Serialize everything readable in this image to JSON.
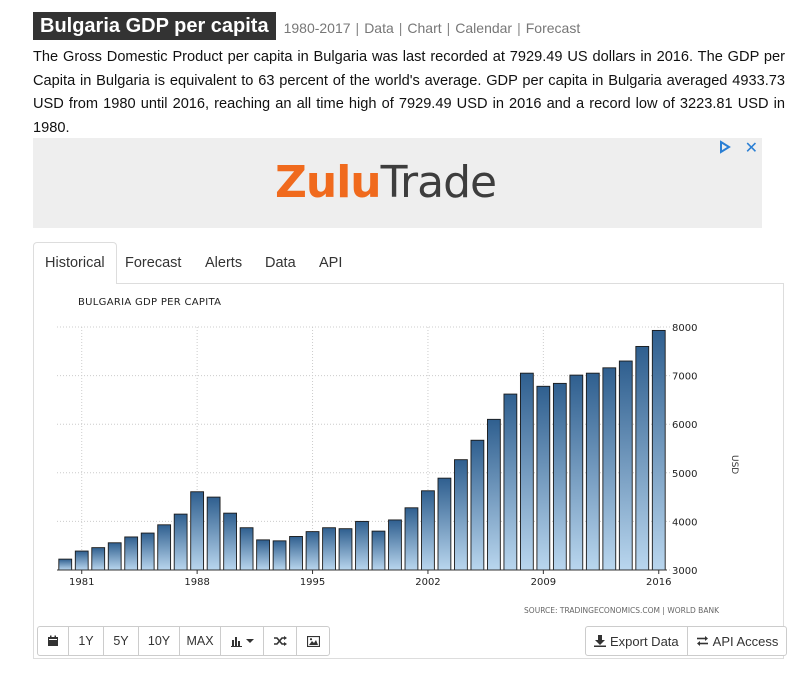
{
  "header": {
    "title": "Bulgaria GDP per capita",
    "links": [
      "1980-2017",
      "Data",
      "Chart",
      "Calendar",
      "Forecast"
    ]
  },
  "description": "The Gross Domestic Product per capita in Bulgaria was last recorded at 7929.49 US dollars in 2016. The GDP per Capita in Bulgaria is equivalent to 63 percent of the world's average. GDP per capita in Bulgaria averaged 4933.73 USD from 1980 until 2016, reaching an all time high of 7929.49 USD in 2016 and a record low of 3223.81 USD in 1980.",
  "ad": {
    "brand_part1": "Zulu",
    "brand_part2": "Trade",
    "close_glyph": "✕"
  },
  "tabs": [
    "Historical",
    "Forecast",
    "Alerts",
    "Data",
    "API"
  ],
  "toolbar": {
    "buttons": [
      "1Y",
      "5Y",
      "10Y",
      "MAX"
    ],
    "export_label": "Export Data",
    "api_label": "API Access"
  },
  "colors": {
    "bar_top": "#2f5f8f",
    "bar_bottom": "#b9d6ee",
    "bar_stroke": "#1a1a1a",
    "grid": "#cccccc",
    "brand_orange": "#f06a1d",
    "title_bg": "#333333"
  },
  "chart_data": {
    "type": "bar",
    "title": "BULGARIA GDP PER CAPITA",
    "ylabel": "USD",
    "source": "SOURCE: TRADINGECONOMICS.COM | WORLD BANK",
    "x_tick_labels": [
      "1981",
      "1988",
      "1995",
      "2002",
      "2009",
      "2016"
    ],
    "y_tick_labels": [
      "3000",
      "4000",
      "5000",
      "6000",
      "7000",
      "8000"
    ],
    "ylim": [
      3000,
      8000
    ],
    "grid": true,
    "categories": [
      1980,
      1981,
      1982,
      1983,
      1984,
      1985,
      1986,
      1987,
      1988,
      1989,
      1990,
      1991,
      1992,
      1993,
      1994,
      1995,
      1996,
      1997,
      1998,
      1999,
      2000,
      2001,
      2002,
      2003,
      2004,
      2005,
      2006,
      2007,
      2008,
      2009,
      2010,
      2011,
      2012,
      2013,
      2014,
      2015,
      2016
    ],
    "values": [
      3223.81,
      3390,
      3460,
      3560,
      3680,
      3760,
      3930,
      4150,
      4610,
      4500,
      4170,
      3870,
      3620,
      3600,
      3690,
      3790,
      3870,
      3850,
      4000,
      3800,
      4030,
      4280,
      4630,
      4890,
      5270,
      5670,
      6100,
      6620,
      7050,
      6780,
      6840,
      7010,
      7050,
      7160,
      7300,
      7600,
      7929.49
    ]
  }
}
